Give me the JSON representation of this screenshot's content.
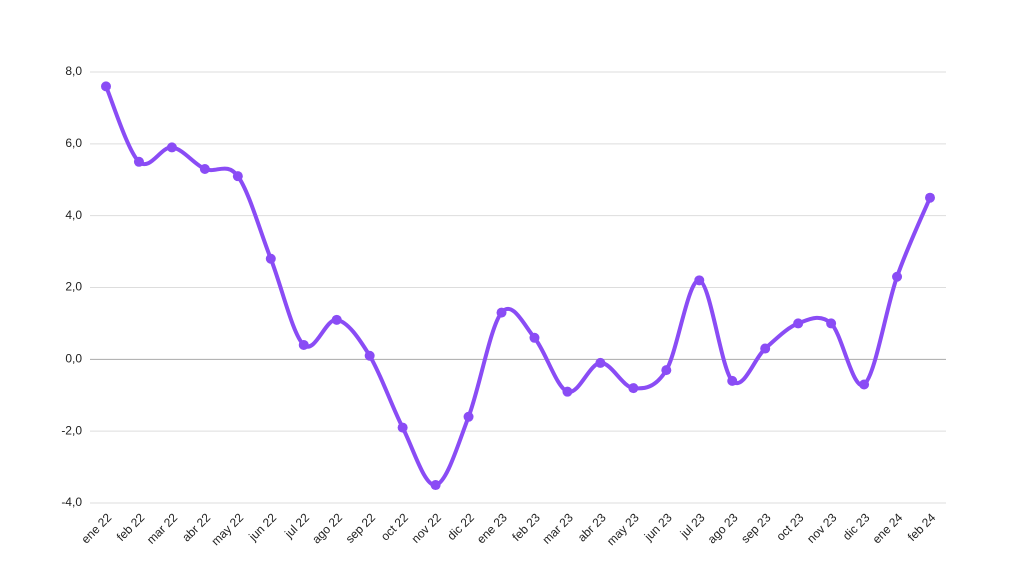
{
  "chart_data": {
    "type": "line",
    "categories": [
      "ene 22",
      "feb 22",
      "mar 22",
      "abr 22",
      "may 22",
      "jun 22",
      "jul 22",
      "ago 22",
      "sep 22",
      "oct 22",
      "nov 22",
      "dic 22",
      "ene 23",
      "feb 23",
      "mar 23",
      "abr 23",
      "may 23",
      "jun 23",
      "jul 23",
      "ago 23",
      "sep 23",
      "oct 23",
      "nov 23",
      "dic 23",
      "ene 24",
      "feb 24"
    ],
    "values": [
      7.6,
      5.5,
      5.9,
      5.3,
      5.1,
      2.8,
      0.4,
      1.1,
      0.1,
      -1.9,
      -3.5,
      -1.6,
      1.3,
      0.6,
      -0.9,
      -0.1,
      -0.8,
      -0.3,
      2.2,
      -0.6,
      0.3,
      1.0,
      1.0,
      -0.7,
      2.3,
      4.5
    ],
    "color": "#8a4cf5",
    "ylim": [
      -4,
      8
    ],
    "yticks": [
      {
        "value": -4,
        "label": "-4,0"
      },
      {
        "value": -2,
        "label": "-2,0"
      },
      {
        "value": 0,
        "label": "0,0"
      },
      {
        "value": 2,
        "label": "2,0"
      },
      {
        "value": 4,
        "label": "4,0"
      },
      {
        "value": 6,
        "label": "6,0"
      },
      {
        "value": 8,
        "label": "8,0"
      }
    ],
    "grid": true
  }
}
